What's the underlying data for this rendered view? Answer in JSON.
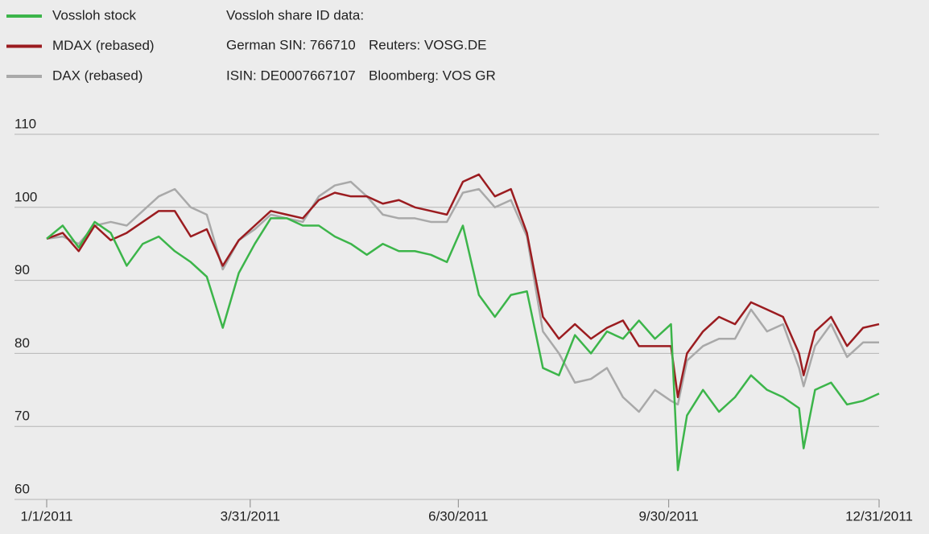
{
  "chart_data": {
    "type": "line",
    "info": {
      "title": "Vossloh share ID data:",
      "rows": [
        [
          "German SIN: 766710",
          "Reuters: VOSG.DE"
        ],
        [
          "ISIN: DE0007667107",
          "Bloomberg: VOS GR"
        ]
      ]
    },
    "x": [
      "1/1/2011",
      "1/8/2011",
      "1/15/2011",
      "1/22/2011",
      "1/29/2011",
      "2/5/2011",
      "2/12/2011",
      "2/19/2011",
      "2/26/2011",
      "3/5/2011",
      "3/12/2011",
      "3/19/2011",
      "3/26/2011",
      "4/2/2011",
      "4/9/2011",
      "4/16/2011",
      "4/23/2011",
      "4/30/2011",
      "5/7/2011",
      "5/14/2011",
      "5/21/2011",
      "5/28/2011",
      "6/4/2011",
      "6/11/2011",
      "6/18/2011",
      "6/25/2011",
      "7/2/2011",
      "7/9/2011",
      "7/16/2011",
      "7/23/2011",
      "7/30/2011",
      "8/6/2011",
      "8/13/2011",
      "8/20/2011",
      "8/27/2011",
      "9/3/2011",
      "9/10/2011",
      "9/17/2011",
      "9/24/2011",
      "10/1/2011",
      "10/4/2011",
      "10/8/2011",
      "10/15/2011",
      "10/22/2011",
      "10/29/2011",
      "11/5/2011",
      "11/12/2011",
      "11/19/2011",
      "11/26/2011",
      "11/28/2011",
      "12/3/2011",
      "12/10/2011",
      "12/17/2011",
      "12/24/2011",
      "12/31/2011"
    ],
    "series": [
      {
        "name": "Vossloh stock",
        "color": "#3cb54a",
        "values": [
          95.7,
          97.5,
          94.5,
          98,
          96.5,
          92,
          95,
          96,
          94,
          92.5,
          90.5,
          83.5,
          91,
          95,
          98.5,
          98.5,
          97.5,
          97.5,
          96,
          95,
          93.5,
          95,
          94,
          94,
          93.5,
          92.5,
          97.5,
          88,
          85,
          88,
          88.5,
          78,
          77,
          82.5,
          80,
          83,
          82,
          84.5,
          82,
          84,
          64,
          71.5,
          75,
          72,
          74,
          77,
          75,
          74,
          72.5,
          67,
          75,
          76,
          73,
          73.5,
          74.5
        ]
      },
      {
        "name": "MDAX (rebased)",
        "color": "#9b1c20",
        "values": [
          95.7,
          96.5,
          94,
          97.5,
          95.5,
          96.5,
          98,
          99.5,
          99.5,
          96,
          97,
          92,
          95.5,
          97.5,
          99.5,
          99,
          98.5,
          101,
          102,
          101.5,
          101.5,
          100.5,
          101,
          100,
          99.5,
          99,
          103.5,
          104.5,
          101.5,
          102.5,
          96.5,
          85,
          82,
          84,
          82,
          83.5,
          84.5,
          81,
          81,
          81,
          74,
          80,
          83,
          85,
          84,
          87,
          86,
          85,
          80,
          77,
          83,
          85,
          81,
          83.5,
          84
        ]
      },
      {
        "name": "DAX (rebased)",
        "color": "#a9a9a9",
        "values": [
          95.7,
          96,
          95,
          97.5,
          98,
          97.5,
          99.5,
          101.5,
          102.5,
          100,
          99,
          91.5,
          95.5,
          97,
          99,
          98.5,
          98,
          101.5,
          103,
          103.5,
          101.5,
          99,
          98.5,
          98.5,
          98,
          98,
          102,
          102.5,
          100,
          101,
          96,
          83,
          80,
          76,
          76.5,
          78,
          74,
          72,
          75,
          73.5,
          73,
          79,
          81,
          82,
          82,
          86,
          83,
          84,
          78,
          75.5,
          81,
          84,
          79.5,
          81.5,
          81.5
        ]
      }
    ],
    "xlim": [
      "1/1/2011",
      "12/31/2011"
    ],
    "xticks": [
      "1/1/2011",
      "3/31/2011",
      "6/30/2011",
      "9/30/2011",
      "12/31/2011"
    ],
    "ylim": [
      60,
      110
    ],
    "yticks": [
      60,
      70,
      80,
      90,
      100,
      110
    ],
    "grid": true
  }
}
